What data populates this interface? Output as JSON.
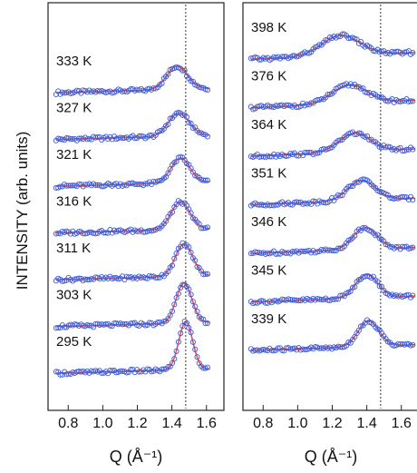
{
  "ylabel": "INTENSITY (arb. units)",
  "colors": {
    "data_marker": "#3a5bd6",
    "fit_line": "#e0506a",
    "frame": "#222222",
    "reference_line": "#333333"
  },
  "chart_data": [
    {
      "type": "line",
      "xlabel": "Q (Å⁻¹)",
      "xlim": [
        0.72,
        1.68
      ],
      "xticks": [
        "0.8",
        "1.0",
        "1.2",
        "1.4",
        "1.6"
      ],
      "reference_line_x": 1.48,
      "series": [
        {
          "name": "333 K",
          "baseline": 1.8,
          "slope": 0.6,
          "peak_q": 1.43,
          "peak_height": 3.0,
          "peak_width": 0.06,
          "q_max": 1.62
        },
        {
          "name": "327 K",
          "baseline": 1.8,
          "slope": 0.6,
          "peak_q": 1.44,
          "peak_height": 3.0,
          "peak_width": 0.06,
          "q_max": 1.62
        },
        {
          "name": "321 K",
          "baseline": 1.6,
          "slope": 0.6,
          "peak_q": 1.45,
          "peak_height": 3.2,
          "peak_width": 0.055,
          "q_max": 1.62
        },
        {
          "name": "316 K",
          "baseline": 1.6,
          "slope": 0.6,
          "peak_q": 1.45,
          "peak_height": 3.6,
          "peak_width": 0.055,
          "q_max": 1.62
        },
        {
          "name": "311 K",
          "baseline": 1.6,
          "slope": 0.6,
          "peak_q": 1.47,
          "peak_height": 4.2,
          "peak_width": 0.05,
          "q_max": 1.62
        },
        {
          "name": "303 K",
          "baseline": 1.5,
          "slope": 0.6,
          "peak_q": 1.47,
          "peak_height": 5.2,
          "peak_width": 0.045,
          "q_max": 1.62
        },
        {
          "name": "295 K",
          "baseline": 1.5,
          "slope": 0.6,
          "peak_q": 1.48,
          "peak_height": 6.2,
          "peak_width": 0.04,
          "q_max": 1.62
        }
      ]
    },
    {
      "type": "line",
      "xlabel": "Q (Å⁻¹)",
      "xlim": [
        0.72,
        1.68
      ],
      "xticks": [
        "0.8",
        "1.0",
        "1.2",
        "1.4",
        "1.6"
      ],
      "reference_line_x": 1.48,
      "series": [
        {
          "name": "398 K",
          "baseline": 1.6,
          "slope": 0.9,
          "peak_q": 1.25,
          "peak_height": 2.6,
          "peak_width": 0.11,
          "q_max": 1.68
        },
        {
          "name": "376 K",
          "baseline": 1.6,
          "slope": 1.0,
          "peak_q": 1.3,
          "peak_height": 2.4,
          "peak_width": 0.1,
          "q_max": 1.68
        },
        {
          "name": "364 K",
          "baseline": 1.6,
          "slope": 1.0,
          "peak_q": 1.33,
          "peak_height": 2.4,
          "peak_width": 0.09,
          "q_max": 1.68
        },
        {
          "name": "351 K",
          "baseline": 1.6,
          "slope": 0.9,
          "peak_q": 1.37,
          "peak_height": 2.6,
          "peak_width": 0.08,
          "q_max": 1.68
        },
        {
          "name": "346 K",
          "baseline": 1.6,
          "slope": 0.8,
          "peak_q": 1.39,
          "peak_height": 2.8,
          "peak_width": 0.07,
          "q_max": 1.68
        },
        {
          "name": "345 K",
          "baseline": 1.6,
          "slope": 0.8,
          "peak_q": 1.4,
          "peak_height": 3.0,
          "peak_width": 0.065,
          "q_max": 1.68
        },
        {
          "name": "339 K",
          "baseline": 1.6,
          "slope": 0.8,
          "peak_q": 1.41,
          "peak_height": 3.3,
          "peak_width": 0.06,
          "q_max": 1.68
        }
      ]
    }
  ]
}
